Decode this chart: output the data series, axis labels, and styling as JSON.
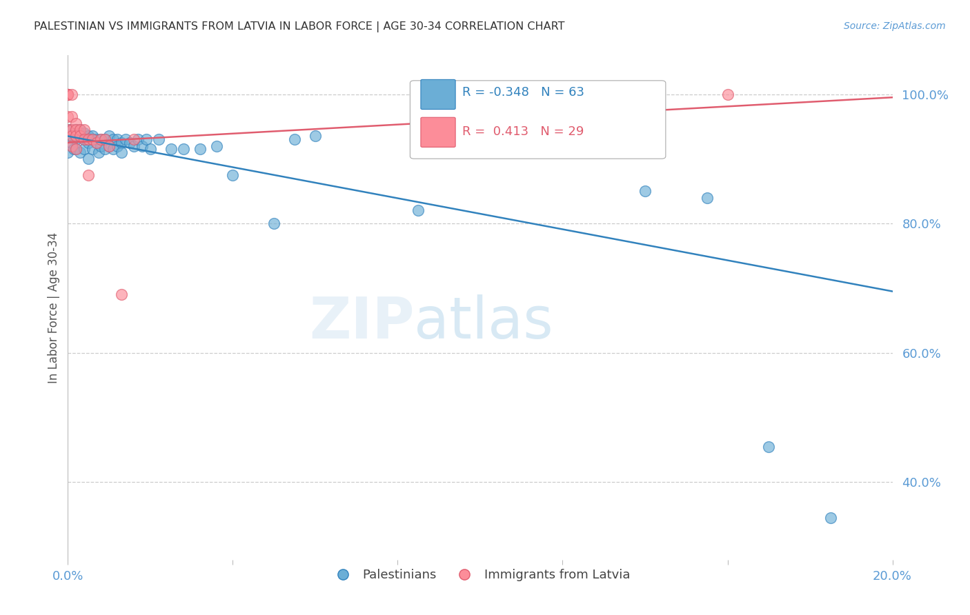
{
  "title": "PALESTINIAN VS IMMIGRANTS FROM LATVIA IN LABOR FORCE | AGE 30-34 CORRELATION CHART",
  "source": "Source: ZipAtlas.com",
  "ylabel": "In Labor Force | Age 30-34",
  "xlim": [
    0.0,
    0.2
  ],
  "ylim": [
    0.28,
    1.06
  ],
  "yticks": [
    0.4,
    0.6,
    0.8,
    1.0
  ],
  "ytick_labels": [
    "40.0%",
    "60.0%",
    "80.0%",
    "100.0%"
  ],
  "xticks": [
    0.0,
    0.04,
    0.08,
    0.12,
    0.16,
    0.2
  ],
  "xtick_labels": [
    "0.0%",
    "",
    "",
    "",
    "",
    "20.0%"
  ],
  "blue_R": -0.348,
  "blue_N": 63,
  "pink_R": 0.413,
  "pink_N": 29,
  "blue_color": "#6baed6",
  "pink_color": "#fc8d99",
  "blue_line_color": "#3182bd",
  "pink_line_color": "#e05c6e",
  "title_color": "#333333",
  "axis_color": "#5b9bd5",
  "grid_color": "#cccccc",
  "blue_line_x": [
    0.0,
    0.2
  ],
  "blue_line_y": [
    0.935,
    0.695
  ],
  "pink_line_x": [
    0.0,
    0.2
  ],
  "pink_line_y": [
    0.925,
    0.995
  ],
  "blue_scatter_x": [
    0.0,
    0.0,
    0.0005,
    0.001,
    0.001,
    0.0015,
    0.0015,
    0.002,
    0.002,
    0.002,
    0.002,
    0.0025,
    0.003,
    0.003,
    0.003,
    0.003,
    0.0035,
    0.004,
    0.004,
    0.004,
    0.0045,
    0.005,
    0.005,
    0.005,
    0.006,
    0.006,
    0.006,
    0.007,
    0.007,
    0.0075,
    0.008,
    0.008,
    0.009,
    0.009,
    0.01,
    0.01,
    0.011,
    0.011,
    0.012,
    0.012,
    0.013,
    0.013,
    0.014,
    0.015,
    0.016,
    0.017,
    0.018,
    0.019,
    0.02,
    0.022,
    0.025,
    0.028,
    0.032,
    0.036,
    0.04,
    0.05,
    0.055,
    0.06,
    0.085,
    0.14,
    0.155,
    0.17,
    0.185
  ],
  "blue_scatter_y": [
    0.935,
    0.91,
    0.945,
    0.945,
    0.925,
    0.94,
    0.915,
    0.945,
    0.94,
    0.93,
    0.915,
    0.935,
    0.945,
    0.94,
    0.935,
    0.91,
    0.935,
    0.94,
    0.93,
    0.915,
    0.93,
    0.935,
    0.925,
    0.9,
    0.935,
    0.93,
    0.915,
    0.93,
    0.925,
    0.91,
    0.93,
    0.92,
    0.93,
    0.915,
    0.935,
    0.92,
    0.93,
    0.915,
    0.93,
    0.92,
    0.925,
    0.91,
    0.93,
    0.925,
    0.92,
    0.93,
    0.92,
    0.93,
    0.915,
    0.93,
    0.915,
    0.915,
    0.915,
    0.92,
    0.875,
    0.8,
    0.93,
    0.935,
    0.82,
    0.85,
    0.84,
    0.455,
    0.345
  ],
  "pink_scatter_x": [
    0.0,
    0.0,
    0.0,
    0.0,
    0.0,
    0.0,
    0.001,
    0.001,
    0.001,
    0.001,
    0.001,
    0.002,
    0.002,
    0.002,
    0.002,
    0.003,
    0.003,
    0.004,
    0.004,
    0.005,
    0.005,
    0.006,
    0.007,
    0.008,
    0.009,
    0.01,
    0.013,
    0.016,
    0.16
  ],
  "pink_scatter_y": [
    1.0,
    1.0,
    1.0,
    1.0,
    0.965,
    0.945,
    1.0,
    0.965,
    0.945,
    0.935,
    0.92,
    0.955,
    0.945,
    0.935,
    0.915,
    0.945,
    0.935,
    0.945,
    0.93,
    0.93,
    0.875,
    0.93,
    0.925,
    0.93,
    0.93,
    0.92,
    0.69,
    0.93,
    1.0
  ]
}
